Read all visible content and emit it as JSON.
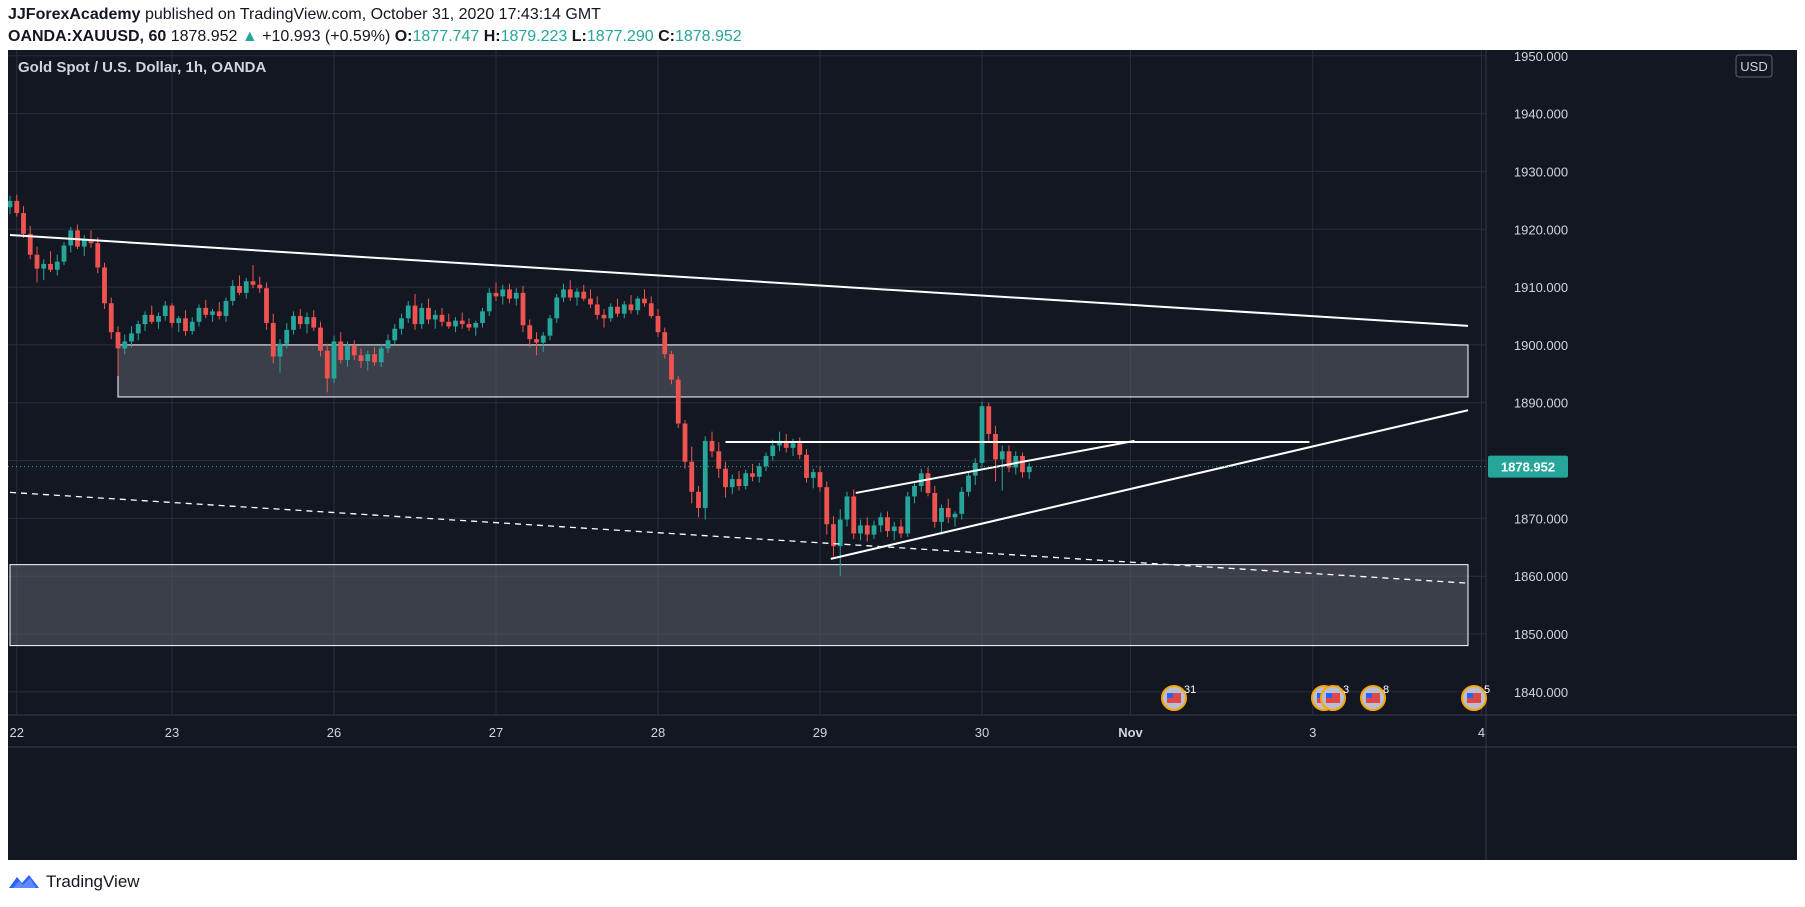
{
  "header": {
    "publisher": "JJForexAcademy",
    "published_text": " published on TradingView.com, October 31, 2020 17:43:14 GMT",
    "symbol": "OANDA:XAUUSD, 60",
    "last": "1878.952",
    "arrow": "▲",
    "change": "+10.993 (+0.59%)",
    "o_label": "O:",
    "o_val": "1877.747",
    "h_label": "H:",
    "h_val": "1879.223",
    "l_label": "L:",
    "l_val": "1877.290",
    "c_label": "C:",
    "c_val": "1878.952"
  },
  "chart": {
    "title": "Gold Spot / U.S. Dollar, 1h, OANDA",
    "currency": "USD",
    "price_tag": "1878.952",
    "events": [
      "31",
      "2",
      "3",
      "8",
      "5"
    ]
  },
  "footer": {
    "brand": "TradingView"
  },
  "colors": {
    "bg": "#131722",
    "up": "#26a69a",
    "down": "#ef5350",
    "grid": "#2a2e39",
    "axis_text": "#d1d4dc",
    "zone": "#5d606b"
  },
  "chart_data": {
    "type": "candlestick",
    "title": "Gold Spot / U.S. Dollar, 1h, OANDA",
    "xlabel": "",
    "ylabel": "",
    "ylim": [
      1836,
      1951
    ],
    "y_ticks": [
      1840,
      1850,
      1860,
      1870,
      1880,
      1890,
      1900,
      1910,
      1920,
      1930,
      1940,
      1950
    ],
    "x_ticks": [
      {
        "label": "22",
        "pos": 1
      },
      {
        "label": "23",
        "pos": 24
      },
      {
        "label": "26",
        "pos": 48
      },
      {
        "label": "27",
        "pos": 72
      },
      {
        "label": "28",
        "pos": 96
      },
      {
        "label": "29",
        "pos": 120
      },
      {
        "label": "30",
        "pos": 144
      },
      {
        "label": "Nov",
        "pos": 166
      },
      {
        "label": "3",
        "pos": 193
      },
      {
        "label": "4",
        "pos": 218
      }
    ],
    "candles": [
      [
        1923.8,
        1925.8,
        1922.6,
        1924.9
      ],
      [
        1924.9,
        1926.0,
        1922.2,
        1922.8
      ],
      [
        1922.8,
        1924.0,
        1918.5,
        1919.2
      ],
      [
        1919.2,
        1920.6,
        1914.8,
        1915.6
      ],
      [
        1915.6,
        1917.0,
        1910.8,
        1913.2
      ],
      [
        1913.2,
        1914.8,
        1911.2,
        1914.0
      ],
      [
        1914.0,
        1916.2,
        1912.6,
        1913.0
      ],
      [
        1913.0,
        1915.6,
        1912.0,
        1914.4
      ],
      [
        1914.4,
        1917.8,
        1913.8,
        1917.2
      ],
      [
        1917.2,
        1920.4,
        1916.0,
        1919.8
      ],
      [
        1919.8,
        1920.8,
        1916.6,
        1917.0
      ],
      [
        1917.0,
        1919.0,
        1915.4,
        1918.2
      ],
      [
        1918.2,
        1919.8,
        1916.8,
        1917.6
      ],
      [
        1917.6,
        1918.6,
        1912.4,
        1913.4
      ],
      [
        1913.4,
        1914.2,
        1906.2,
        1907.2
      ],
      [
        1907.2,
        1908.2,
        1901.0,
        1902.2
      ],
      [
        1902.2,
        1903.2,
        1894.6,
        1899.4
      ],
      [
        1899.4,
        1901.8,
        1898.4,
        1900.6
      ],
      [
        1900.6,
        1903.2,
        1899.6,
        1902.0
      ],
      [
        1902.0,
        1904.2,
        1900.8,
        1903.6
      ],
      [
        1903.6,
        1905.8,
        1902.4,
        1905.2
      ],
      [
        1905.2,
        1906.8,
        1903.6,
        1904.0
      ],
      [
        1904.0,
        1905.6,
        1902.8,
        1905.0
      ],
      [
        1905.0,
        1907.6,
        1904.2,
        1906.8
      ],
      [
        1906.8,
        1907.2,
        1903.0,
        1903.8
      ],
      [
        1903.8,
        1905.0,
        1902.2,
        1904.6
      ],
      [
        1904.6,
        1906.0,
        1901.6,
        1902.4
      ],
      [
        1902.4,
        1904.8,
        1901.8,
        1904.0
      ],
      [
        1904.0,
        1907.0,
        1903.2,
        1906.4
      ],
      [
        1906.4,
        1907.8,
        1904.6,
        1905.2
      ],
      [
        1905.2,
        1906.2,
        1904.0,
        1905.8
      ],
      [
        1905.8,
        1907.4,
        1904.4,
        1905.0
      ],
      [
        1905.0,
        1908.2,
        1904.0,
        1907.6
      ],
      [
        1907.6,
        1911.2,
        1906.8,
        1910.2
      ],
      [
        1910.2,
        1912.0,
        1908.6,
        1909.0
      ],
      [
        1909.0,
        1911.6,
        1908.0,
        1911.0
      ],
      [
        1911.0,
        1913.8,
        1909.8,
        1910.4
      ],
      [
        1910.4,
        1911.8,
        1909.0,
        1909.8
      ],
      [
        1909.8,
        1910.8,
        1902.6,
        1903.8
      ],
      [
        1903.8,
        1905.4,
        1896.8,
        1898.0
      ],
      [
        1898.0,
        1901.0,
        1895.2,
        1900.2
      ],
      [
        1900.2,
        1903.8,
        1899.4,
        1902.6
      ],
      [
        1902.6,
        1905.8,
        1901.8,
        1905.0
      ],
      [
        1905.0,
        1906.2,
        1902.8,
        1903.6
      ],
      [
        1903.6,
        1905.6,
        1902.0,
        1904.8
      ],
      [
        1904.8,
        1906.0,
        1902.4,
        1903.0
      ],
      [
        1903.0,
        1904.0,
        1898.0,
        1899.0
      ],
      [
        1899.0,
        1900.2,
        1891.8,
        1894.2
      ],
      [
        1894.2,
        1901.6,
        1893.4,
        1900.6
      ],
      [
        1900.6,
        1902.2,
        1896.8,
        1897.4
      ],
      [
        1897.4,
        1900.6,
        1896.2,
        1899.8
      ],
      [
        1899.8,
        1900.8,
        1897.4,
        1898.2
      ],
      [
        1898.2,
        1899.4,
        1896.0,
        1897.2
      ],
      [
        1897.2,
        1899.0,
        1895.6,
        1898.4
      ],
      [
        1898.4,
        1899.6,
        1896.4,
        1897.0
      ],
      [
        1897.0,
        1900.2,
        1896.2,
        1899.4
      ],
      [
        1899.4,
        1901.8,
        1898.6,
        1900.8
      ],
      [
        1900.8,
        1903.6,
        1900.0,
        1902.8
      ],
      [
        1902.8,
        1905.4,
        1901.8,
        1904.6
      ],
      [
        1904.6,
        1907.6,
        1903.8,
        1906.8
      ],
      [
        1906.8,
        1908.8,
        1902.6,
        1903.6
      ],
      [
        1903.6,
        1907.2,
        1902.8,
        1906.4
      ],
      [
        1906.4,
        1908.0,
        1903.6,
        1904.4
      ],
      [
        1904.4,
        1906.0,
        1902.8,
        1905.2
      ],
      [
        1905.2,
        1906.4,
        1903.2,
        1904.0
      ],
      [
        1904.0,
        1905.4,
        1902.8,
        1903.2
      ],
      [
        1903.2,
        1904.8,
        1902.2,
        1904.2
      ],
      [
        1904.2,
        1905.6,
        1902.8,
        1903.6
      ],
      [
        1903.6,
        1904.6,
        1902.4,
        1903.0
      ],
      [
        1903.0,
        1904.2,
        1901.6,
        1903.8
      ],
      [
        1903.8,
        1906.4,
        1903.0,
        1905.8
      ],
      [
        1905.8,
        1909.8,
        1905.0,
        1909.0
      ],
      [
        1909.0,
        1910.8,
        1907.6,
        1908.4
      ],
      [
        1908.4,
        1910.4,
        1907.0,
        1909.6
      ],
      [
        1909.6,
        1910.6,
        1907.2,
        1908.0
      ],
      [
        1908.0,
        1909.8,
        1906.8,
        1909.0
      ],
      [
        1909.0,
        1910.2,
        1902.2,
        1903.4
      ],
      [
        1903.4,
        1904.4,
        1899.6,
        1901.0
      ],
      [
        1901.0,
        1902.2,
        1898.2,
        1900.4
      ],
      [
        1900.4,
        1902.2,
        1898.8,
        1901.6
      ],
      [
        1901.6,
        1905.2,
        1900.8,
        1904.6
      ],
      [
        1904.6,
        1908.8,
        1903.8,
        1908.2
      ],
      [
        1908.2,
        1910.6,
        1907.4,
        1909.6
      ],
      [
        1909.6,
        1911.2,
        1907.6,
        1908.2
      ],
      [
        1908.2,
        1909.8,
        1906.8,
        1909.2
      ],
      [
        1909.2,
        1910.4,
        1907.6,
        1908.0
      ],
      [
        1908.0,
        1909.6,
        1906.4,
        1907.0
      ],
      [
        1907.0,
        1908.4,
        1904.4,
        1905.2
      ],
      [
        1905.2,
        1906.2,
        1903.0,
        1904.6
      ],
      [
        1904.6,
        1907.2,
        1904.0,
        1906.6
      ],
      [
        1906.6,
        1908.0,
        1904.8,
        1905.4
      ],
      [
        1905.4,
        1907.6,
        1904.6,
        1907.0
      ],
      [
        1907.0,
        1908.6,
        1905.4,
        1906.0
      ],
      [
        1906.0,
        1908.4,
        1905.2,
        1908.0
      ],
      [
        1908.0,
        1909.6,
        1906.6,
        1907.2
      ],
      [
        1907.2,
        1908.4,
        1904.6,
        1905.0
      ],
      [
        1905.0,
        1906.2,
        1901.4,
        1902.2
      ],
      [
        1902.2,
        1903.0,
        1897.6,
        1898.4
      ],
      [
        1898.4,
        1899.0,
        1893.2,
        1894.0
      ],
      [
        1894.0,
        1894.6,
        1885.6,
        1886.4
      ],
      [
        1886.4,
        1887.0,
        1878.6,
        1879.8
      ],
      [
        1879.8,
        1882.4,
        1872.6,
        1874.6
      ],
      [
        1874.6,
        1875.6,
        1870.2,
        1871.8
      ],
      [
        1871.8,
        1884.2,
        1869.8,
        1883.4
      ],
      [
        1883.4,
        1885.0,
        1880.6,
        1881.6
      ],
      [
        1881.6,
        1883.2,
        1877.0,
        1878.6
      ],
      [
        1878.6,
        1879.8,
        1873.6,
        1875.4
      ],
      [
        1875.4,
        1877.6,
        1874.2,
        1876.8
      ],
      [
        1876.8,
        1878.2,
        1874.8,
        1875.6
      ],
      [
        1875.6,
        1878.4,
        1875.0,
        1877.8
      ],
      [
        1877.8,
        1879.4,
        1876.4,
        1877.2
      ],
      [
        1877.2,
        1879.6,
        1876.2,
        1879.0
      ],
      [
        1879.0,
        1881.4,
        1878.2,
        1880.8
      ],
      [
        1880.8,
        1883.6,
        1880.0,
        1882.6
      ],
      [
        1882.6,
        1885.0,
        1881.6,
        1883.4
      ],
      [
        1883.4,
        1884.6,
        1881.4,
        1882.2
      ],
      [
        1882.2,
        1883.8,
        1880.8,
        1883.0
      ],
      [
        1883.0,
        1884.0,
        1880.2,
        1881.0
      ],
      [
        1881.0,
        1882.0,
        1876.2,
        1877.0
      ],
      [
        1877.0,
        1878.6,
        1875.2,
        1878.0
      ],
      [
        1878.0,
        1879.0,
        1874.6,
        1875.4
      ],
      [
        1875.4,
        1876.4,
        1867.2,
        1869.0
      ],
      [
        1869.0,
        1870.4,
        1863.4,
        1865.2
      ],
      [
        1865.2,
        1871.6,
        1860.0,
        1869.8
      ],
      [
        1869.8,
        1874.6,
        1868.6,
        1873.8
      ],
      [
        1873.8,
        1875.0,
        1866.4,
        1867.4
      ],
      [
        1867.4,
        1869.8,
        1866.2,
        1868.8
      ],
      [
        1868.8,
        1870.2,
        1866.0,
        1867.2
      ],
      [
        1867.2,
        1869.6,
        1866.4,
        1868.8
      ],
      [
        1868.8,
        1871.0,
        1867.6,
        1870.2
      ],
      [
        1870.2,
        1871.2,
        1866.8,
        1867.8
      ],
      [
        1867.8,
        1869.4,
        1866.2,
        1868.6
      ],
      [
        1868.6,
        1869.8,
        1866.6,
        1867.4
      ],
      [
        1867.4,
        1874.6,
        1866.8,
        1873.8
      ],
      [
        1873.8,
        1876.2,
        1872.6,
        1875.6
      ],
      [
        1875.6,
        1878.6,
        1874.6,
        1877.8
      ],
      [
        1877.8,
        1878.8,
        1873.8,
        1874.4
      ],
      [
        1874.4,
        1875.6,
        1868.4,
        1869.4
      ],
      [
        1869.4,
        1872.4,
        1867.2,
        1871.8
      ],
      [
        1871.8,
        1873.4,
        1869.2,
        1870.2
      ],
      [
        1870.2,
        1871.2,
        1868.6,
        1870.8
      ],
      [
        1870.8,
        1875.4,
        1869.8,
        1874.6
      ],
      [
        1874.6,
        1878.2,
        1873.8,
        1877.4
      ],
      [
        1877.4,
        1880.4,
        1875.8,
        1879.6
      ],
      [
        1879.6,
        1890.2,
        1878.8,
        1889.4
      ],
      [
        1889.4,
        1890.0,
        1883.4,
        1884.6
      ],
      [
        1884.6,
        1886.0,
        1876.4,
        1880.2
      ],
      [
        1880.2,
        1882.6,
        1874.8,
        1881.6
      ],
      [
        1881.6,
        1882.6,
        1878.0,
        1878.8
      ],
      [
        1878.8,
        1881.6,
        1877.6,
        1880.8
      ],
      [
        1880.8,
        1881.4,
        1877.0,
        1878.0
      ],
      [
        1878.0,
        1879.6,
        1876.8,
        1878.952
      ]
    ],
    "zones": [
      {
        "x_start": 16,
        "x_end": 216,
        "low": 1891,
        "high": 1900
      },
      {
        "x_start": 0,
        "x_end": 216,
        "low": 1848,
        "high": 1862
      }
    ],
    "lines": [
      {
        "from": [
          0,
          1919
        ],
        "to": [
          216,
          1903.3
        ],
        "style": "solid"
      },
      {
        "from": [
          0,
          1874.5
        ],
        "to": [
          216,
          1858.8
        ],
        "style": "dashed"
      },
      {
        "from": [
          106,
          1883.2
        ],
        "to": [
          192.5,
          1883.2
        ],
        "style": "solid"
      },
      {
        "from": [
          121.6,
          1863
        ],
        "to": [
          216,
          1888.7
        ],
        "style": "solid"
      },
      {
        "from": [
          125.3,
          1874.4
        ],
        "to": [
          166.6,
          1883.4
        ],
        "style": "solid"
      }
    ],
    "last_price": 1878.952
  }
}
